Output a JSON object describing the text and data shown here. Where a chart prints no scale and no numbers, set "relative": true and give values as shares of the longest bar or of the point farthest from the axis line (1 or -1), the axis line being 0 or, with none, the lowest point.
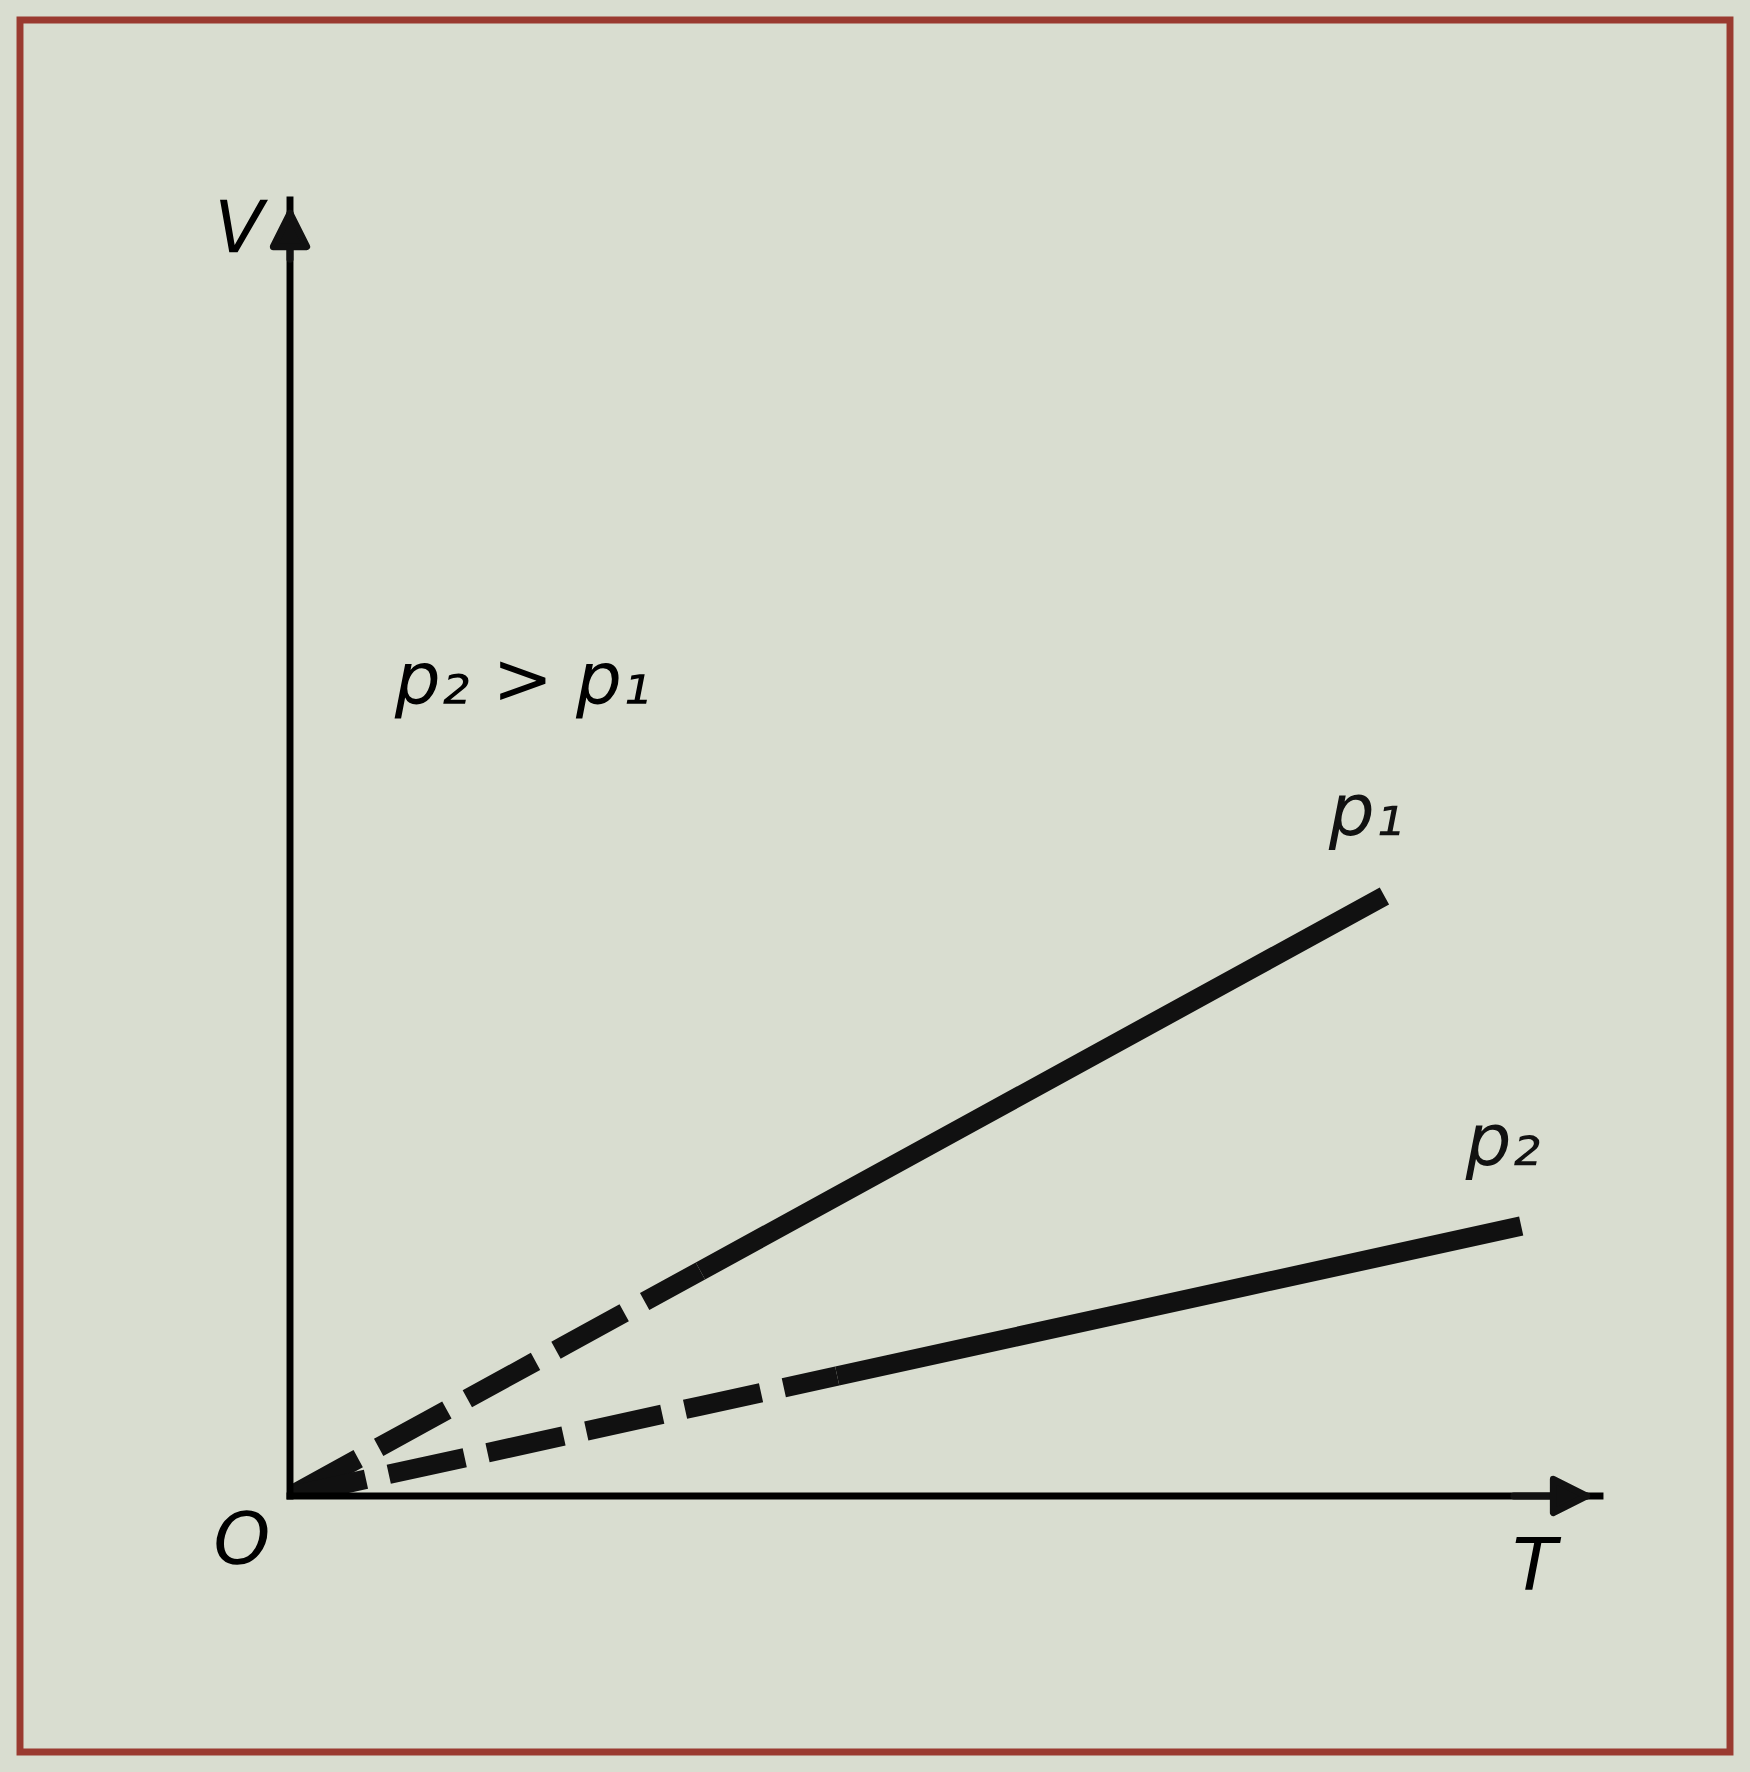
{
  "chart_data": {
    "type": "line",
    "relative": true,
    "xlabel": "T",
    "legend": false,
    "marker": "none",
    "annotations": [
      "p₂ > p₁",
      "O",
      "V"
    ],
    "categories": [
      null,
      null,
      null,
      null,
      null,
      null,
      null,
      null,
      null,
      null
    ],
    "series": [
      {
        "color": "#111111",
        "line_style": "dashed",
        "values": [
          0,
          0.125,
          0.25,
          0.375,
          null,
          null,
          null,
          null,
          null,
          null
        ]
      },
      {
        "name": "p₁",
        "color": "#111111",
        "line_style": "solid",
        "values": [
          null,
          null,
          null,
          0.375,
          0.5,
          0.625,
          0.75,
          0.875,
          1,
          null
        ]
      },
      {
        "color": "#111111",
        "line_style": "dashed",
        "values": [
          0,
          0.05,
          0.1,
          0.15,
          0.2,
          null,
          null,
          null,
          null,
          null
        ]
      },
      {
        "name": "p₂",
        "color": "#111111",
        "line_style": "solid",
        "values": [
          null,
          null,
          null,
          null,
          0.2,
          0.25,
          0.3,
          0.35,
          0.4,
          0.45
        ]
      }
    ]
  }
}
